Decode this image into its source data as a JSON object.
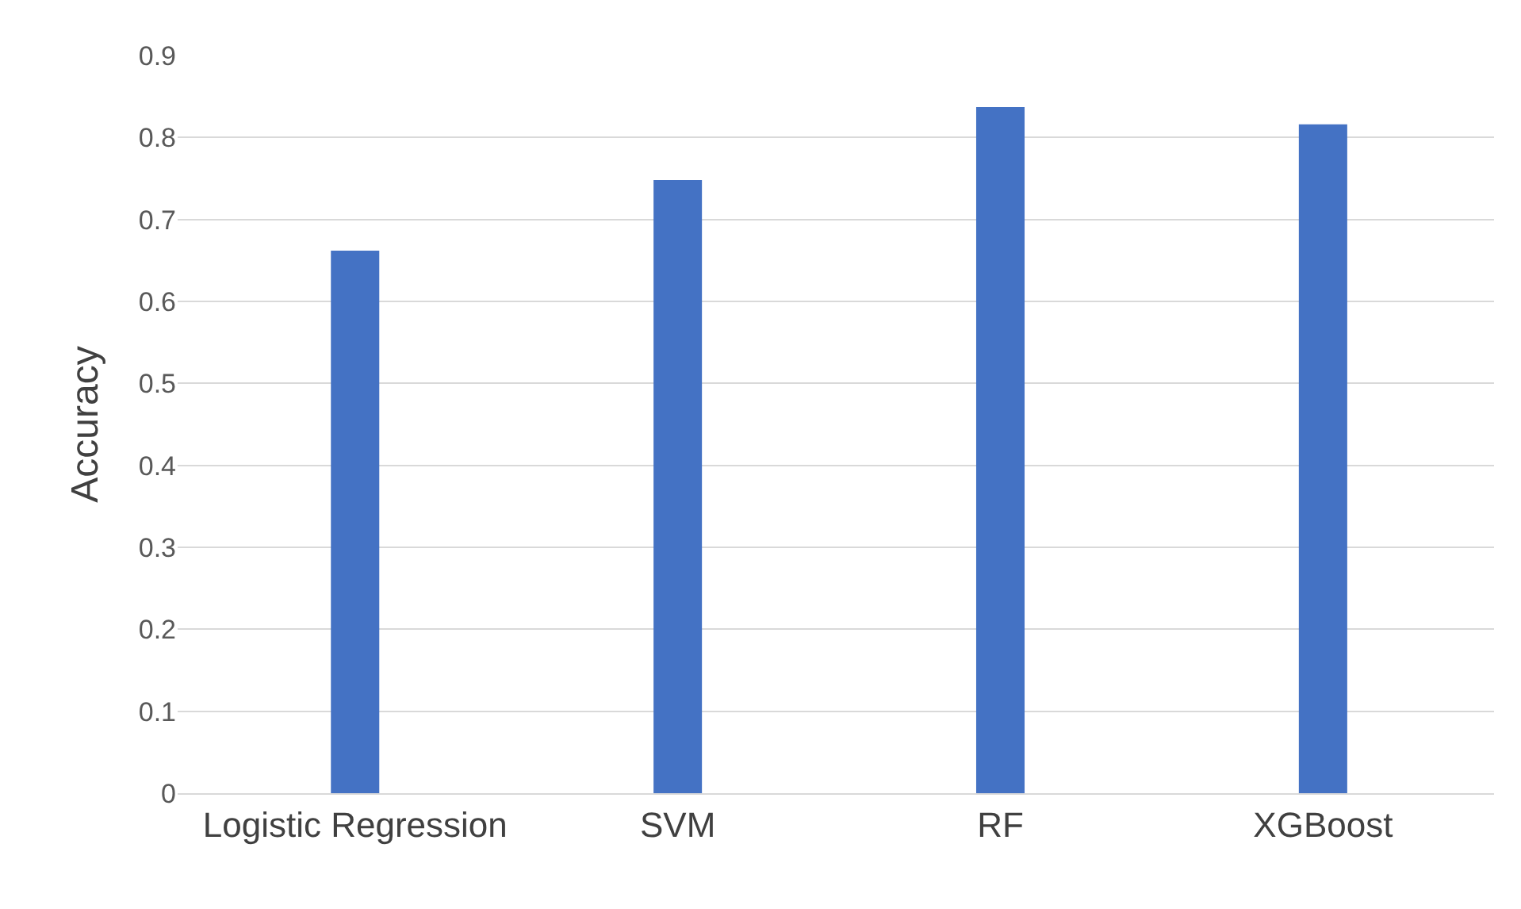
{
  "chart_data": {
    "type": "bar",
    "ylabel": "Accuracy",
    "categories": [
      "Logistic Regression",
      "SVM",
      "RF",
      "XGBoost"
    ],
    "values": [
      0.662,
      0.748,
      0.837,
      0.816
    ],
    "color": "#4472c4",
    "ylim": [
      0,
      0.9
    ],
    "yticks": [
      0,
      0.1,
      0.2,
      0.3,
      0.4,
      0.5,
      0.6,
      0.7,
      0.8,
      0.9
    ],
    "grid": "y"
  }
}
